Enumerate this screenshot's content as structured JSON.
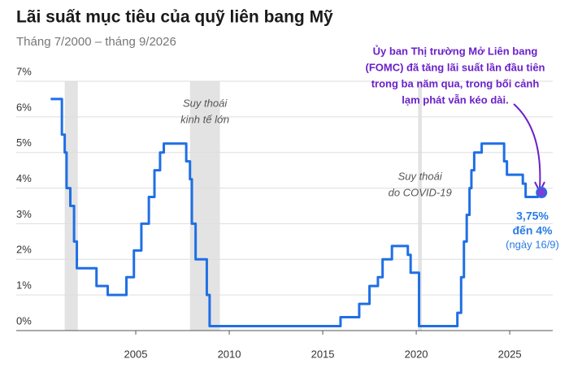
{
  "chart_data": {
    "type": "line",
    "title": "Lãi suất mục tiêu của quỹ liên bang Mỹ",
    "subtitle": "Tháng 7/2000 – tháng 9/2026",
    "x": [
      2000.45,
      2001.05,
      2001.05,
      2001.2,
      2001.2,
      2001.3,
      2001.3,
      2001.5,
      2001.5,
      2001.7,
      2001.7,
      2001.85,
      2001.85,
      2002.9,
      2002.9,
      2003.5,
      2003.5,
      2004.5,
      2004.5,
      2004.9,
      2004.9,
      2005.3,
      2005.3,
      2005.7,
      2005.7,
      2006.0,
      2006.0,
      2006.3,
      2006.3,
      2006.5,
      2006.5,
      2007.7,
      2007.7,
      2007.9,
      2007.9,
      2008.0,
      2008.0,
      2008.2,
      2008.2,
      2008.8,
      2008.8,
      2008.95,
      2008.95,
      2015.95,
      2015.95,
      2016.95,
      2016.95,
      2017.5,
      2017.5,
      2017.95,
      2017.95,
      2018.2,
      2018.2,
      2018.7,
      2018.7,
      2019.55,
      2019.55,
      2019.7,
      2019.7,
      2020.15,
      2020.15,
      2022.2,
      2022.2,
      2022.4,
      2022.4,
      2022.55,
      2022.55,
      2022.7,
      2022.7,
      2022.85,
      2022.85,
      2022.95,
      2022.95,
      2023.1,
      2023.1,
      2023.5,
      2023.5,
      2024.7,
      2024.7,
      2024.85,
      2024.85,
      2025.7,
      2025.7,
      2025.85,
      2025.85,
      2026.5,
      2026.5,
      2026.7
    ],
    "series": [
      {
        "color": "#1f6fe5",
        "values": [
          6.5,
          6.5,
          5.5,
          5.5,
          5.0,
          5.0,
          4.0,
          4.0,
          3.5,
          3.5,
          2.5,
          2.5,
          1.75,
          1.75,
          1.25,
          1.25,
          1.0,
          1.0,
          1.5,
          1.5,
          2.25,
          2.25,
          3.0,
          3.0,
          3.75,
          3.75,
          4.5,
          4.5,
          5.0,
          5.0,
          5.25,
          5.25,
          4.75,
          4.75,
          4.25,
          4.25,
          3.0,
          3.0,
          2.0,
          2.0,
          1.0,
          1.0,
          0.125,
          0.125,
          0.375,
          0.375,
          0.75,
          0.75,
          1.25,
          1.25,
          1.5,
          1.5,
          2.0,
          2.0,
          2.375,
          2.375,
          2.125,
          2.125,
          1.625,
          1.625,
          0.125,
          0.125,
          0.5,
          0.5,
          1.5,
          1.5,
          2.5,
          2.5,
          3.25,
          3.25,
          4.0,
          4.0,
          4.5,
          4.5,
          5.0,
          5.0,
          5.25,
          5.25,
          4.75,
          4.75,
          4.375,
          4.375,
          4.125,
          4.125,
          3.75,
          3.75,
          3.875,
          3.875
        ]
      }
    ],
    "xlim": [
      2000,
      2027.3
    ],
    "xticks": [
      2005,
      2010,
      2015,
      2020,
      2025
    ],
    "ylim": [
      0,
      7
    ],
    "yticks": [
      {
        "value": 0,
        "label": "0%"
      },
      {
        "value": 1,
        "label": "1%"
      },
      {
        "value": 2,
        "label": "2%"
      },
      {
        "value": 3,
        "label": "3%"
      },
      {
        "value": 4,
        "label": "4%"
      },
      {
        "value": 5,
        "label": "5%"
      },
      {
        "value": 6,
        "label": "6%"
      },
      {
        "value": 7,
        "label": "7%"
      }
    ],
    "grid": true,
    "recessions": [
      {
        "start": 2001.2,
        "end": 2001.9
      },
      {
        "start": 2007.9,
        "end": 2009.5,
        "label": [
          "Suy thoái",
          "kinh tế lớn"
        ]
      },
      {
        "start": 2020.1,
        "end": 2020.3,
        "label": [
          "Suy thoái",
          "do COVID-19"
        ]
      }
    ],
    "annotation": [
      "Ủy ban Thị trường Mở Liên bang",
      "(FOMC) đã tăng lãi suất lần đầu tiên",
      "trong ba năm qua, trong bối cảnh",
      "lạm phát vẫn kéo dài."
    ],
    "last_value_label": [
      "3,75%",
      "đến 4%"
    ],
    "last_date_label": "(ngày 16/9)"
  }
}
